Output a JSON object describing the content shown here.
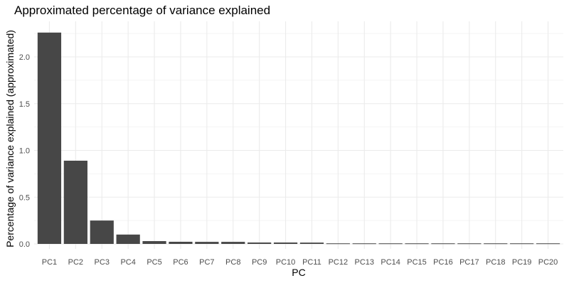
{
  "chart_data": {
    "type": "bar",
    "title": "Approximated percentage of variance explained",
    "xlabel": "PC",
    "ylabel": "Percentage of variance explained (approximated)",
    "categories": [
      "PC1",
      "PC2",
      "PC3",
      "PC4",
      "PC5",
      "PC6",
      "PC7",
      "PC8",
      "PC9",
      "PC10",
      "PC11",
      "PC12",
      "PC13",
      "PC14",
      "PC15",
      "PC16",
      "PC17",
      "PC18",
      "PC19",
      "PC20"
    ],
    "values": [
      2.26,
      0.89,
      0.25,
      0.1,
      0.03,
      0.023,
      0.022,
      0.022,
      0.015,
      0.015,
      0.014,
      0.006,
      0.006,
      0.006,
      0.006,
      0.006,
      0.006,
      0.006,
      0.006,
      0.006
    ],
    "ylim": [
      0,
      2.36
    ],
    "yticks": [
      "0.0",
      "0.5",
      "1.0",
      "1.5",
      "2.0"
    ],
    "grid": true,
    "bar_color": "#474747",
    "grid_color": "#ebebeb"
  }
}
